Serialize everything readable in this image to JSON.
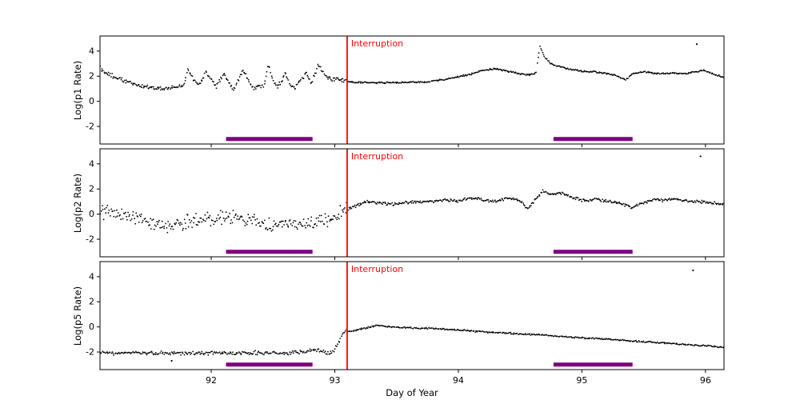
{
  "figure": {
    "background": "#ffffff"
  },
  "chart_data": {
    "type": "scatter",
    "title": "",
    "xlabel": "Day of Year",
    "xlim": [
      91.1,
      96.15
    ],
    "xticks": [
      92,
      93,
      94,
      95,
      96
    ],
    "ylim": [
      -3.4,
      5.2
    ],
    "yticks": [
      -2,
      0,
      2,
      4
    ],
    "grid": false,
    "point_color": "#000000",
    "interruption": {
      "x": 93.1,
      "label": "Interruption",
      "color": "#ff0000"
    },
    "coverage_bars": {
      "color": "#800080",
      "y": -3.0,
      "intervals": [
        [
          92.12,
          92.82
        ],
        [
          94.77,
          95.41
        ]
      ]
    },
    "panels": [
      {
        "name": "p1",
        "ylabel": "Log(p1 Rate)",
        "n_points": 700,
        "split_x": 93.1,
        "noise_pre": 0.13,
        "noise_post": 0.05,
        "trend": [
          [
            91.1,
            2.7
          ],
          [
            91.15,
            2.2
          ],
          [
            91.22,
            1.95
          ],
          [
            91.3,
            1.6
          ],
          [
            91.4,
            1.3
          ],
          [
            91.5,
            1.1
          ],
          [
            91.62,
            1.0
          ],
          [
            91.72,
            1.1
          ],
          [
            91.78,
            1.3
          ],
          [
            91.81,
            2.5
          ],
          [
            91.85,
            1.9
          ],
          [
            91.9,
            1.25
          ],
          [
            91.96,
            2.4
          ],
          [
            92.0,
            1.7
          ],
          [
            92.04,
            1.15
          ],
          [
            92.1,
            2.2
          ],
          [
            92.14,
            1.5
          ],
          [
            92.18,
            1.0
          ],
          [
            92.26,
            2.5
          ],
          [
            92.3,
            1.7
          ],
          [
            92.34,
            1.0
          ],
          [
            92.43,
            1.3
          ],
          [
            92.46,
            3.0
          ],
          [
            92.5,
            1.7
          ],
          [
            92.54,
            1.15
          ],
          [
            92.6,
            2.2
          ],
          [
            92.64,
            1.4
          ],
          [
            92.68,
            1.05
          ],
          [
            92.77,
            2.3
          ],
          [
            92.81,
            1.5
          ],
          [
            92.87,
            2.9
          ],
          [
            92.92,
            2.1
          ],
          [
            92.97,
            1.75
          ],
          [
            93.02,
            1.8
          ],
          [
            93.08,
            1.6
          ],
          [
            93.15,
            1.5
          ],
          [
            93.35,
            1.48
          ],
          [
            93.55,
            1.5
          ],
          [
            93.75,
            1.55
          ],
          [
            93.9,
            1.75
          ],
          [
            94.0,
            1.95
          ],
          [
            94.1,
            2.15
          ],
          [
            94.2,
            2.45
          ],
          [
            94.3,
            2.6
          ],
          [
            94.4,
            2.4
          ],
          [
            94.5,
            2.2
          ],
          [
            94.58,
            2.1
          ],
          [
            94.63,
            2.3
          ],
          [
            94.66,
            4.4
          ],
          [
            94.7,
            3.5
          ],
          [
            94.75,
            3.0
          ],
          [
            94.82,
            2.75
          ],
          [
            94.9,
            2.55
          ],
          [
            95.0,
            2.4
          ],
          [
            95.1,
            2.35
          ],
          [
            95.2,
            2.2
          ],
          [
            95.28,
            2.05
          ],
          [
            95.35,
            1.7
          ],
          [
            95.42,
            2.25
          ],
          [
            95.5,
            2.35
          ],
          [
            95.6,
            2.2
          ],
          [
            95.72,
            2.25
          ],
          [
            95.82,
            2.2
          ],
          [
            95.9,
            2.3
          ],
          [
            95.98,
            2.45
          ],
          [
            96.06,
            2.2
          ],
          [
            96.15,
            1.9
          ]
        ],
        "outliers": [
          [
            95.93,
            4.55
          ]
        ]
      },
      {
        "name": "p2",
        "ylabel": "Log(p2 Rate)",
        "n_points": 700,
        "split_x": 93.1,
        "noise_pre": 0.45,
        "noise_post": 0.1,
        "trend": [
          [
            91.1,
            0.25
          ],
          [
            91.2,
            0.05
          ],
          [
            91.3,
            -0.1
          ],
          [
            91.4,
            -0.35
          ],
          [
            91.5,
            -0.75
          ],
          [
            91.6,
            -1.1
          ],
          [
            91.7,
            -0.95
          ],
          [
            91.8,
            -0.6
          ],
          [
            91.9,
            -0.5
          ],
          [
            92.0,
            -0.35
          ],
          [
            92.1,
            -0.2
          ],
          [
            92.2,
            -0.3
          ],
          [
            92.3,
            -0.5
          ],
          [
            92.4,
            -0.75
          ],
          [
            92.5,
            -0.95
          ],
          [
            92.6,
            -0.6
          ],
          [
            92.7,
            -1.05
          ],
          [
            92.8,
            -0.7
          ],
          [
            92.9,
            -0.5
          ],
          [
            92.98,
            -0.3
          ],
          [
            93.05,
            0.05
          ],
          [
            93.1,
            0.4
          ],
          [
            93.18,
            0.7
          ],
          [
            93.28,
            1.0
          ],
          [
            93.38,
            0.85
          ],
          [
            93.5,
            0.8
          ],
          [
            93.62,
            0.95
          ],
          [
            93.75,
            1.0
          ],
          [
            93.88,
            1.1
          ],
          [
            94.0,
            1.05
          ],
          [
            94.1,
            1.3
          ],
          [
            94.2,
            1.15
          ],
          [
            94.3,
            1.0
          ],
          [
            94.42,
            1.3
          ],
          [
            94.5,
            1.05
          ],
          [
            94.56,
            0.45
          ],
          [
            94.62,
            1.1
          ],
          [
            94.68,
            1.8
          ],
          [
            94.76,
            1.55
          ],
          [
            94.84,
            1.7
          ],
          [
            94.92,
            1.3
          ],
          [
            95.02,
            1.1
          ],
          [
            95.12,
            1.15
          ],
          [
            95.22,
            1.0
          ],
          [
            95.32,
            0.85
          ],
          [
            95.4,
            0.5
          ],
          [
            95.48,
            0.85
          ],
          [
            95.58,
            1.1
          ],
          [
            95.7,
            1.15
          ],
          [
            95.82,
            1.05
          ],
          [
            95.95,
            1.0
          ],
          [
            96.05,
            0.9
          ],
          [
            96.15,
            0.75
          ]
        ],
        "outliers": [
          [
            95.96,
            4.6
          ]
        ]
      },
      {
        "name": "p5",
        "ylabel": "Log(p5 Rate)",
        "n_points": 650,
        "split_x": 93.1,
        "noise_pre": 0.12,
        "noise_post": 0.05,
        "trend": [
          [
            91.1,
            -2.1
          ],
          [
            91.5,
            -2.08
          ],
          [
            91.9,
            -2.12
          ],
          [
            92.3,
            -2.05
          ],
          [
            92.6,
            -2.1
          ],
          [
            92.8,
            -1.92
          ],
          [
            92.88,
            -1.85
          ],
          [
            92.94,
            -2.15
          ],
          [
            93.0,
            -1.8
          ],
          [
            93.04,
            -1.0
          ],
          [
            93.08,
            -0.35
          ],
          [
            93.15,
            -0.3
          ],
          [
            93.25,
            -0.1
          ],
          [
            93.35,
            0.15
          ],
          [
            93.45,
            0.0
          ],
          [
            93.6,
            -0.08
          ],
          [
            93.8,
            -0.12
          ],
          [
            94.0,
            -0.25
          ],
          [
            94.25,
            -0.42
          ],
          [
            94.5,
            -0.55
          ],
          [
            94.75,
            -0.7
          ],
          [
            95.0,
            -0.88
          ],
          [
            95.25,
            -1.0
          ],
          [
            95.5,
            -1.18
          ],
          [
            95.75,
            -1.35
          ],
          [
            96.0,
            -1.5
          ],
          [
            96.15,
            -1.62
          ]
        ],
        "outliers": [
          [
            91.68,
            -2.7
          ],
          [
            95.9,
            4.5
          ]
        ]
      }
    ]
  }
}
